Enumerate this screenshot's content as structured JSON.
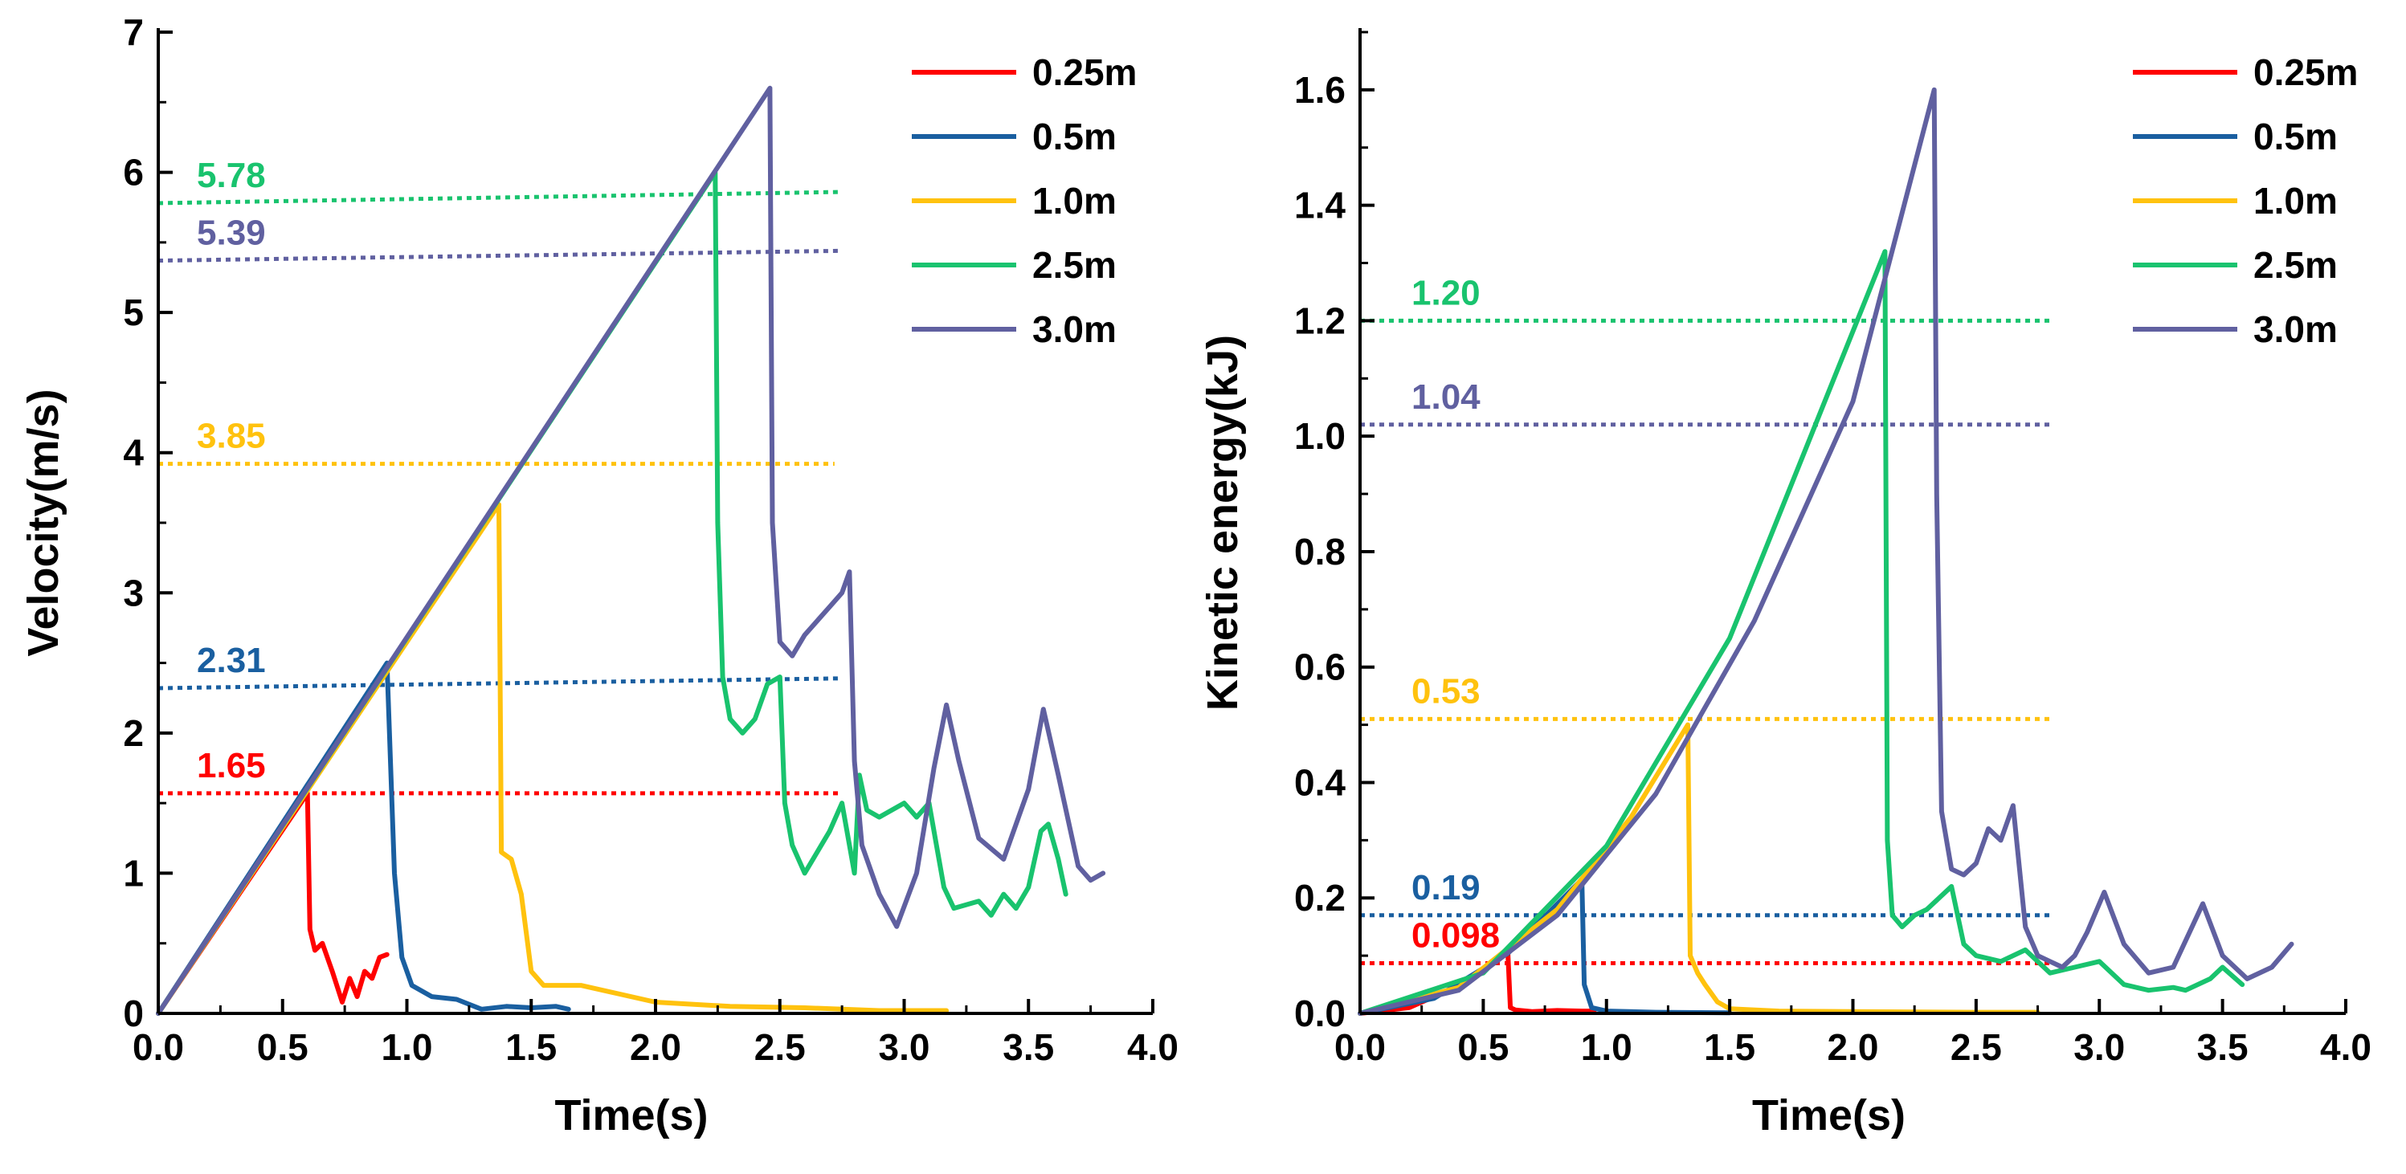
{
  "chart_data": [
    {
      "type": "line",
      "xlabel": "Time(s)",
      "ylabel": "Velocity(m/s)",
      "xlim": [
        0,
        4.0
      ],
      "ylim": [
        0,
        7
      ],
      "xticks": [
        "0.0",
        "0.5",
        "1.0",
        "1.5",
        "2.0",
        "2.5",
        "3.0",
        "3.5",
        "4.0"
      ],
      "yticks": [
        "0",
        "1",
        "2",
        "3",
        "4",
        "5",
        "6",
        "7"
      ],
      "legend_position": "top-right",
      "series": [
        {
          "name": "0.25m",
          "color": "#ff0000",
          "x": [
            0,
            0.6,
            0.61,
            0.63,
            0.66,
            0.7,
            0.74,
            0.77,
            0.8,
            0.83,
            0.86,
            0.89,
            0.92
          ],
          "y": [
            0,
            1.57,
            0.6,
            0.45,
            0.5,
            0.3,
            0.08,
            0.25,
            0.12,
            0.3,
            0.25,
            0.4,
            0.42
          ]
        },
        {
          "name": "0.5m",
          "color": "#1a5fa0",
          "x": [
            0,
            0.92,
            0.95,
            0.98,
            1.02,
            1.1,
            1.2,
            1.3,
            1.4,
            1.5,
            1.6,
            1.65
          ],
          "y": [
            0,
            2.5,
            1.0,
            0.4,
            0.2,
            0.12,
            0.1,
            0.03,
            0.05,
            0.04,
            0.05,
            0.03
          ]
        },
        {
          "name": "1.0m",
          "color": "#ffc20e",
          "x": [
            0,
            1.37,
            1.38,
            1.42,
            1.46,
            1.5,
            1.55,
            1.7,
            2.0,
            2.3,
            2.6,
            2.9,
            3.17
          ],
          "y": [
            0,
            3.63,
            1.15,
            1.1,
            0.85,
            0.3,
            0.2,
            0.2,
            0.08,
            0.05,
            0.04,
            0.02,
            0.02
          ]
        },
        {
          "name": "2.5m",
          "color": "#19c36e",
          "x": [
            0,
            2.24,
            2.25,
            2.27,
            2.3,
            2.35,
            2.4,
            2.45,
            2.5,
            2.52,
            2.55,
            2.6,
            2.7,
            2.75,
            2.8,
            2.82,
            2.85,
            2.9,
            2.95,
            3.0,
            3.05,
            3.1,
            3.13,
            3.16,
            3.2,
            3.3,
            3.35,
            3.4,
            3.45,
            3.5,
            3.55,
            3.58,
            3.62,
            3.65
          ],
          "y": [
            0,
            6.0,
            3.5,
            2.4,
            2.1,
            2.0,
            2.1,
            2.35,
            2.4,
            1.5,
            1.2,
            1.0,
            1.3,
            1.5,
            1.0,
            1.7,
            1.45,
            1.4,
            1.45,
            1.5,
            1.4,
            1.5,
            1.2,
            0.9,
            0.75,
            0.8,
            0.7,
            0.85,
            0.75,
            0.9,
            1.3,
            1.35,
            1.1,
            0.85
          ]
        },
        {
          "name": "3.0m",
          "color": "#6060a0",
          "x": [
            0,
            2.46,
            2.47,
            2.5,
            2.55,
            2.6,
            2.65,
            2.7,
            2.75,
            2.78,
            2.8,
            2.83,
            2.9,
            2.97,
            3.05,
            3.12,
            3.17,
            3.22,
            3.3,
            3.4,
            3.5,
            3.56,
            3.62,
            3.7,
            3.75,
            3.8
          ],
          "y": [
            0,
            6.6,
            3.5,
            2.65,
            2.55,
            2.7,
            2.8,
            2.9,
            3.0,
            3.15,
            1.8,
            1.2,
            0.85,
            0.62,
            1.0,
            1.75,
            2.2,
            1.8,
            1.25,
            1.1,
            1.6,
            2.17,
            1.7,
            1.05,
            0.95,
            1.0
          ]
        }
      ],
      "reference_lines": [
        {
          "label": "5.78",
          "color": "#19c36e",
          "x_start": 0,
          "x_end": 2.75,
          "y_start": 5.78,
          "y_end": 5.86
        },
        {
          "label": "5.39",
          "color": "#6060a0",
          "x_start": 0,
          "x_end": 2.75,
          "y_start": 5.37,
          "y_end": 5.44
        },
        {
          "label": "3.85",
          "color": "#ffc20e",
          "x_start": 0,
          "x_end": 2.72,
          "y_start": 3.92,
          "y_end": 3.92
        },
        {
          "label": "2.31",
          "color": "#1a5fa0",
          "x_start": 0,
          "x_end": 2.75,
          "y_start": 2.32,
          "y_end": 2.39
        },
        {
          "label": "1.65",
          "color": "#ff0000",
          "x_start": 0,
          "x_end": 2.75,
          "y_start": 1.57,
          "y_end": 1.57
        }
      ]
    },
    {
      "type": "line",
      "xlabel": "Time(s)",
      "ylabel": "Kinetic energy(kJ)",
      "xlim": [
        0,
        4.0
      ],
      "ylim": [
        0,
        1.7
      ],
      "xticks": [
        "0.0",
        "0.5",
        "1.0",
        "1.5",
        "2.0",
        "2.5",
        "3.0",
        "3.5",
        "4.0"
      ],
      "yticks": [
        "0.0",
        "0.2",
        "0.4",
        "0.6",
        "0.8",
        "1.0",
        "1.2",
        "1.4",
        "1.6"
      ],
      "legend_position": "top-right",
      "series": [
        {
          "name": "0.25m",
          "color": "#ff0000",
          "x": [
            0,
            0.2,
            0.4,
            0.6,
            0.61,
            0.63,
            0.7,
            0.8,
            0.9,
            0.95
          ],
          "y": [
            0,
            0.01,
            0.048,
            0.105,
            0.01,
            0.006,
            0.003,
            0.005,
            0.004,
            0.004
          ]
        },
        {
          "name": "0.5m",
          "color": "#1a5fa0",
          "x": [
            0,
            0.3,
            0.6,
            0.9,
            0.91,
            0.94,
            1.0,
            1.2,
            1.5
          ],
          "y": [
            0,
            0.026,
            0.104,
            0.232,
            0.05,
            0.01,
            0.004,
            0.002,
            0.001
          ]
        },
        {
          "name": "1.0m",
          "color": "#ffc20e",
          "x": [
            0,
            0.4,
            0.8,
            1.1,
            1.33,
            1.34,
            1.37,
            1.4,
            1.45,
            1.5,
            1.7,
            2.0,
            2.5,
            2.75
          ],
          "y": [
            0,
            0.045,
            0.18,
            0.34,
            0.5,
            0.1,
            0.07,
            0.05,
            0.02,
            0.008,
            0.004,
            0.003,
            0.002,
            0.002
          ]
        },
        {
          "name": "2.5m",
          "color": "#19c36e",
          "x": [
            0,
            0.5,
            1.0,
            1.5,
            2.13,
            2.14,
            2.16,
            2.2,
            2.25,
            2.3,
            2.35,
            2.4,
            2.45,
            2.5,
            2.6,
            2.7,
            2.8,
            2.9,
            3.0,
            3.1,
            3.2,
            3.3,
            3.35,
            3.45,
            3.5,
            3.58
          ],
          "y": [
            0,
            0.07,
            0.29,
            0.65,
            1.32,
            0.3,
            0.17,
            0.15,
            0.17,
            0.18,
            0.2,
            0.22,
            0.12,
            0.1,
            0.09,
            0.11,
            0.07,
            0.08,
            0.09,
            0.05,
            0.04,
            0.045,
            0.04,
            0.06,
            0.08,
            0.05
          ]
        },
        {
          "name": "3.0m",
          "color": "#6060a0",
          "x": [
            0,
            0.4,
            0.8,
            1.2,
            1.6,
            2.0,
            2.33,
            2.34,
            2.36,
            2.4,
            2.45,
            2.5,
            2.55,
            2.6,
            2.65,
            2.7,
            2.75,
            2.8,
            2.85,
            2.9,
            2.95,
            3.02,
            3.1,
            3.2,
            3.3,
            3.42,
            3.5,
            3.6,
            3.7,
            3.78
          ],
          "y": [
            0,
            0.04,
            0.17,
            0.38,
            0.68,
            1.06,
            1.6,
            0.9,
            0.35,
            0.25,
            0.24,
            0.26,
            0.32,
            0.3,
            0.36,
            0.15,
            0.1,
            0.09,
            0.08,
            0.1,
            0.14,
            0.21,
            0.12,
            0.07,
            0.08,
            0.19,
            0.1,
            0.06,
            0.08,
            0.12
          ]
        }
      ],
      "reference_lines": [
        {
          "label": "1.20",
          "color": "#19c36e",
          "x_start": 0,
          "x_end": 2.8,
          "y_start": 1.2,
          "y_end": 1.2
        },
        {
          "label": "1.04",
          "color": "#6060a0",
          "x_start": 0,
          "x_end": 2.8,
          "y_start": 1.02,
          "y_end": 1.02
        },
        {
          "label": "0.53",
          "color": "#ffc20e",
          "x_start": 0,
          "x_end": 2.8,
          "y_start": 0.51,
          "y_end": 0.51
        },
        {
          "label": "0.19",
          "color": "#1a5fa0",
          "x_start": 0,
          "x_end": 2.8,
          "y_start": 0.17,
          "y_end": 0.17
        },
        {
          "label": "0.098",
          "color": "#ff0000",
          "x_start": 0,
          "x_end": 2.8,
          "y_start": 0.087,
          "y_end": 0.087
        }
      ]
    }
  ]
}
